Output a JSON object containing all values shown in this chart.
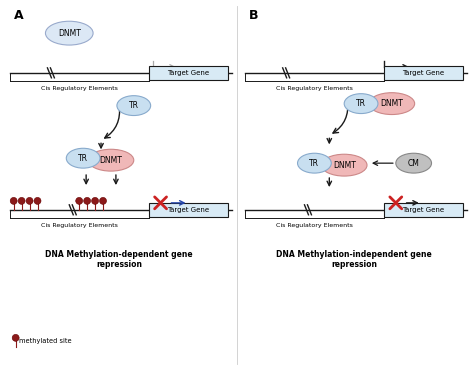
{
  "panel_A_label": "A",
  "panel_B_label": "B",
  "dnmt_color": "#dce8f5",
  "dnmt_color_pink": "#f0b8b8",
  "tr_color": "#c8dff0",
  "cm_color": "#c0c0c0",
  "gene_box_color": "#d8eaf5",
  "line_color": "#1a1a1a",
  "gray_arrow_color": "#aaaaaa",
  "red_x_color": "#cc2222",
  "blue_arrow_color": "#2244aa",
  "methylation_color": "#8b1a1a",
  "label_A_bottom": "DNA Methylation-dependent gene\nrepression",
  "label_B_bottom": "DNA Methylation-independent gene\nrepression",
  "cis_label": "Cis Regulatory Elements",
  "target_gene_label": "Target Gene",
  "methylated_site_label": "methylated site"
}
